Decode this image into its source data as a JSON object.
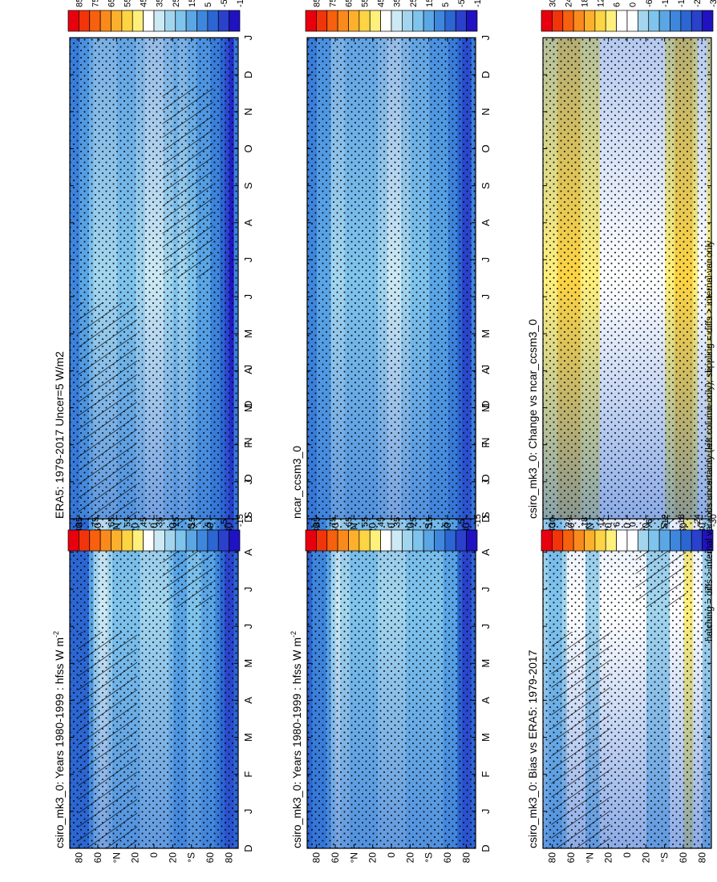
{
  "footnote": "hatching = diffs > internal var+obs uncertainty (left column only); stippling = diffs > internal var only",
  "month_labels": [
    "D",
    "J",
    "F",
    "M",
    "A",
    "M",
    "J",
    "J",
    "A",
    "S",
    "O",
    "N",
    "D",
    "J"
  ],
  "lat_labels": [
    "80",
    "60",
    "°N",
    "20",
    "0",
    "20",
    "°S",
    "60",
    "80"
  ],
  "colorbars": {
    "absolute": {
      "ticks": [
        "85",
        "75",
        "65",
        "55",
        "45",
        "35",
        "25",
        "15",
        "5",
        "-5",
        "-15"
      ],
      "colors": [
        "#e8000e",
        "#f2340b",
        "#f7600d",
        "#fb8a1c",
        "#fdb02c",
        "#fdd443",
        "#fff07c",
        "#ffffff",
        "#cde9f4",
        "#a3d6ee",
        "#7fc4ec",
        "#5ba7e6",
        "#3f87dc",
        "#2c66d2",
        "#2a41cb",
        "#2012c0"
      ]
    },
    "difference": {
      "ticks": [
        "30",
        "24",
        "18",
        "12",
        "6",
        "0",
        "-6",
        "-12",
        "-18",
        "-24",
        "-30"
      ],
      "colors": [
        "#e8000e",
        "#f2340b",
        "#f7600d",
        "#fb8a1c",
        "#fdb02c",
        "#fdd443",
        "#fff07c",
        "#ffffff",
        "#ffffff",
        "#a3d6ee",
        "#7fc4ec",
        "#5ba7e6",
        "#3f87dc",
        "#2c66d2",
        "#2a41cb",
        "#2012c0"
      ]
    }
  },
  "chart_data": [
    {
      "type": "heatmap",
      "title": "csiro_mk3_0: Years 1980-1999 : hfss W m",
      "title_superscript": "-2",
      "xlabel": "",
      "ylabel": "",
      "x": [
        "D",
        "J",
        "F",
        "M",
        "A",
        "M",
        "J",
        "J",
        "A",
        "S",
        "O",
        "N",
        "D",
        "J"
      ],
      "y_ticks": [
        -80,
        -60,
        -40,
        -20,
        0,
        20,
        40,
        60,
        80
      ],
      "ylim": [
        -90,
        90
      ],
      "colorbar": "absolute",
      "overlay": "hatching and stippling",
      "latitude_profile": [
        [
          -85,
          -15
        ],
        [
          -75,
          -5
        ],
        [
          -65,
          10
        ],
        [
          -58,
          12
        ],
        [
          -50,
          15
        ],
        [
          -40,
          16
        ],
        [
          -30,
          12
        ],
        [
          -20,
          15
        ],
        [
          -10,
          24
        ],
        [
          0,
          27
        ],
        [
          10,
          24
        ],
        [
          20,
          18
        ],
        [
          30,
          15
        ],
        [
          45,
          22
        ],
        [
          60,
          35
        ],
        [
          70,
          0
        ],
        [
          85,
          0
        ]
      ]
    },
    {
      "type": "heatmap",
      "title": "csiro_mk3_0: Years 1980-1999 : hfss W m",
      "title_superscript": "-2",
      "xlabel": "",
      "ylabel": "",
      "x": [
        "D",
        "J",
        "F",
        "M",
        "A",
        "M",
        "J",
        "J",
        "A",
        "S",
        "O",
        "N",
        "D",
        "J"
      ],
      "y_ticks": [
        -80,
        -60,
        -40,
        -20,
        0,
        20,
        40,
        60,
        80
      ],
      "ylim": [
        -90,
        90
      ],
      "colorbar": "absolute",
      "overlay": "stippling",
      "latitude_profile": [
        [
          -85,
          -15
        ],
        [
          -75,
          -5
        ],
        [
          -65,
          12
        ],
        [
          -58,
          14
        ],
        [
          -50,
          15
        ],
        [
          -40,
          18
        ],
        [
          -30,
          14
        ],
        [
          -20,
          16
        ],
        [
          -10,
          25
        ],
        [
          0,
          27
        ],
        [
          10,
          24
        ],
        [
          20,
          18
        ],
        [
          30,
          15
        ],
        [
          45,
          22
        ],
        [
          60,
          33
        ],
        [
          70,
          5
        ],
        [
          85,
          0
        ]
      ]
    },
    {
      "type": "heatmap",
      "title": "ERA5: 1979-2017 Uncer=5 W/m2",
      "xlabel": "",
      "ylabel": "",
      "x": [
        "D",
        "J",
        "F",
        "M",
        "A",
        "M",
        "J",
        "J",
        "A",
        "S",
        "O",
        "N",
        "D",
        "J"
      ],
      "y_ticks": [
        -80,
        -60,
        -40,
        -20,
        0,
        20,
        40,
        60,
        80
      ],
      "ylim": [
        -90,
        90
      ],
      "colorbar": "absolute",
      "overlay": "hatching and stippling",
      "latitude_profile": [
        [
          -85,
          -15
        ],
        [
          -75,
          -8
        ],
        [
          -65,
          5
        ],
        [
          -58,
          10
        ],
        [
          -50,
          12
        ],
        [
          -40,
          20
        ],
        [
          -30,
          22
        ],
        [
          -20,
          20
        ],
        [
          -10,
          30
        ],
        [
          0,
          32
        ],
        [
          10,
          28
        ],
        [
          20,
          20
        ],
        [
          30,
          18
        ],
        [
          45,
          22
        ],
        [
          60,
          28
        ],
        [
          70,
          12
        ],
        [
          85,
          6
        ]
      ]
    },
    {
      "type": "heatmap",
      "title": "ncar_ccsm3_0",
      "xlabel": "",
      "ylabel": "",
      "x": [
        "D",
        "J",
        "F",
        "M",
        "A",
        "M",
        "J",
        "J",
        "A",
        "S",
        "O",
        "N",
        "D",
        "J"
      ],
      "y_ticks": [
        -80,
        -60,
        -40,
        -20,
        0,
        20,
        40,
        60,
        80
      ],
      "ylim": [
        -90,
        90
      ],
      "colorbar": "absolute",
      "overlay": "stippling",
      "latitude_profile": [
        [
          -85,
          -12
        ],
        [
          -75,
          -5
        ],
        [
          -65,
          5
        ],
        [
          -58,
          8
        ],
        [
          -50,
          10
        ],
        [
          -40,
          15
        ],
        [
          -30,
          18
        ],
        [
          -20,
          22
        ],
        [
          -10,
          28
        ],
        [
          0,
          30
        ],
        [
          10,
          26
        ],
        [
          20,
          18
        ],
        [
          30,
          16
        ],
        [
          45,
          20
        ],
        [
          60,
          26
        ],
        [
          70,
          10
        ],
        [
          85,
          6
        ]
      ]
    },
    {
      "type": "heatmap",
      "title": "csiro_mk3_0: Bias vs ERA5: 1979-2017",
      "xlabel": "",
      "ylabel": "",
      "x": [
        "D",
        "J",
        "F",
        "M",
        "A",
        "M",
        "J",
        "J",
        "A",
        "S",
        "O",
        "N",
        "D",
        "J"
      ],
      "y_ticks": [
        -80,
        -60,
        -40,
        -20,
        0,
        20,
        40,
        60,
        80
      ],
      "ylim": [
        -90,
        90
      ],
      "colorbar": "difference",
      "overlay": "hatching and stippling",
      "latitude_profile": [
        [
          -85,
          -6
        ],
        [
          -75,
          0
        ],
        [
          -65,
          8
        ],
        [
          -58,
          4
        ],
        [
          -50,
          -3
        ],
        [
          -40,
          -5
        ],
        [
          -30,
          -8
        ],
        [
          -20,
          -3
        ],
        [
          -10,
          -4
        ],
        [
          0,
          -4
        ],
        [
          10,
          -3
        ],
        [
          20,
          3
        ],
        [
          30,
          -4
        ],
        [
          45,
          -5
        ],
        [
          60,
          5
        ],
        [
          70,
          -10
        ],
        [
          85,
          -8
        ]
      ]
    },
    {
      "type": "heatmap",
      "title": "csiro_mk3_0: Change vs ncar_ccsm3_0",
      "xlabel": "",
      "ylabel": "",
      "x": [
        "D",
        "J",
        "F",
        "M",
        "A",
        "M",
        "J",
        "J",
        "A",
        "S",
        "O",
        "N",
        "D",
        "J"
      ],
      "y_ticks": [
        -80,
        -60,
        -40,
        -20,
        0,
        20,
        40,
        60,
        80
      ],
      "ylim": [
        -90,
        90
      ],
      "colorbar": "difference",
      "overlay": "stippling",
      "latitude_profile": [
        [
          -85,
          -4
        ],
        [
          -75,
          2
        ],
        [
          -65,
          12
        ],
        [
          -58,
          10
        ],
        [
          -50,
          8
        ],
        [
          -40,
          4
        ],
        [
          -30,
          2
        ],
        [
          -20,
          0
        ],
        [
          -10,
          -2
        ],
        [
          0,
          -3
        ],
        [
          10,
          -2
        ],
        [
          20,
          0
        ],
        [
          30,
          4
        ],
        [
          45,
          7
        ],
        [
          60,
          12
        ],
        [
          70,
          10
        ],
        [
          85,
          4
        ]
      ]
    }
  ]
}
